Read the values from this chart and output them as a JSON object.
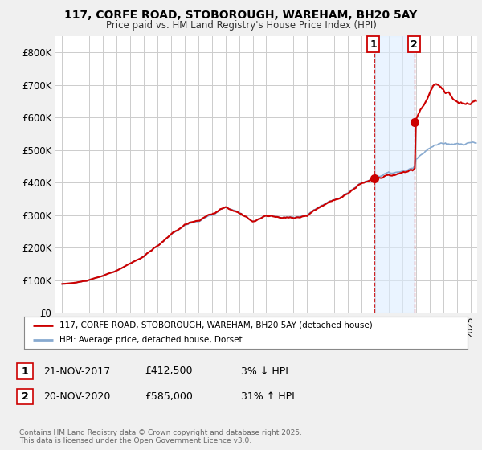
{
  "title": "117, CORFE ROAD, STOBOROUGH, WAREHAM, BH20 5AY",
  "subtitle": "Price paid vs. HM Land Registry's House Price Index (HPI)",
  "ylabel_ticks": [
    "£0",
    "£100K",
    "£200K",
    "£300K",
    "£400K",
    "£500K",
    "£600K",
    "£700K",
    "£800K"
  ],
  "ytick_values": [
    0,
    100000,
    200000,
    300000,
    400000,
    500000,
    600000,
    700000,
    800000
  ],
  "ylim": [
    0,
    850000
  ],
  "xlim_start": 1994.5,
  "xlim_end": 2025.5,
  "line1_color": "#cc0000",
  "line2_color": "#88aad0",
  "marker1_date": 2017.89,
  "marker1_price": 412500,
  "marker2_date": 2020.89,
  "marker2_price": 585000,
  "legend1_text": "117, CORFE ROAD, STOBOROUGH, WAREHAM, BH20 5AY (detached house)",
  "legend2_text": "HPI: Average price, detached house, Dorset",
  "note1_label": "1",
  "note1_date": "21-NOV-2017",
  "note1_price": "£412,500",
  "note1_hpi": "3% ↓ HPI",
  "note2_label": "2",
  "note2_date": "20-NOV-2020",
  "note2_price": "£585,000",
  "note2_hpi": "31% ↑ HPI",
  "copyright_text": "Contains HM Land Registry data © Crown copyright and database right 2025.\nThis data is licensed under the Open Government Licence v3.0.",
  "bg_color": "#f0f0f0",
  "plot_bg_color": "#ffffff",
  "grid_color": "#cccccc",
  "vline_color": "#cc0000",
  "shade_color": "#ddeeff",
  "shade_alpha": 0.6
}
